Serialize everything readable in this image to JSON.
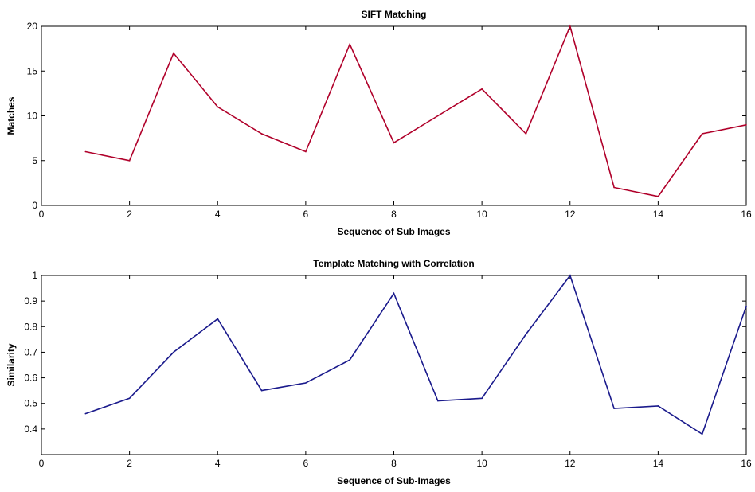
{
  "chart_data": [
    {
      "type": "line",
      "title": "SIFT Matching",
      "xlabel": "Sequence of Sub Images",
      "ylabel": "Matches",
      "xlim": [
        0,
        16
      ],
      "ylim": [
        0,
        20
      ],
      "xticks": [
        0,
        2,
        4,
        6,
        8,
        10,
        12,
        14,
        16
      ],
      "yticks": [
        0,
        5,
        10,
        15,
        20
      ],
      "grid": false,
      "line_color": "#b0002a",
      "x": [
        1,
        2,
        3,
        4,
        5,
        6,
        7,
        8,
        9,
        10,
        11,
        12,
        13,
        14,
        15,
        16
      ],
      "series": [
        {
          "values": [
            6,
            5,
            17,
            11,
            8,
            6,
            18,
            7,
            10,
            13,
            8,
            20,
            2,
            1,
            8,
            9
          ]
        }
      ]
    },
    {
      "type": "line",
      "title": "Template Matching with Correlation",
      "xlabel": "Sequence of Sub-Images",
      "ylabel": "Similarity",
      "xlim": [
        0,
        16
      ],
      "ylim": [
        0.3,
        1
      ],
      "xticks": [
        0,
        2,
        4,
        6,
        8,
        10,
        12,
        14,
        16
      ],
      "yticks": [
        0.4,
        0.5,
        0.6,
        0.7,
        0.8,
        0.9,
        1
      ],
      "ytick_labels": [
        "0.4",
        "0.5",
        "0.6",
        "0.7",
        "0.8",
        "0.9",
        "1"
      ],
      "grid": false,
      "line_color": "#1a1a8c",
      "x": [
        1,
        2,
        3,
        4,
        5,
        6,
        7,
        8,
        9,
        10,
        11,
        12,
        13,
        14,
        15,
        16
      ],
      "series": [
        {
          "values": [
            0.46,
            0.52,
            0.7,
            0.83,
            0.55,
            0.58,
            0.67,
            0.93,
            0.51,
            0.52,
            0.77,
            1.0,
            0.48,
            0.49,
            0.38,
            0.88
          ]
        }
      ]
    }
  ]
}
